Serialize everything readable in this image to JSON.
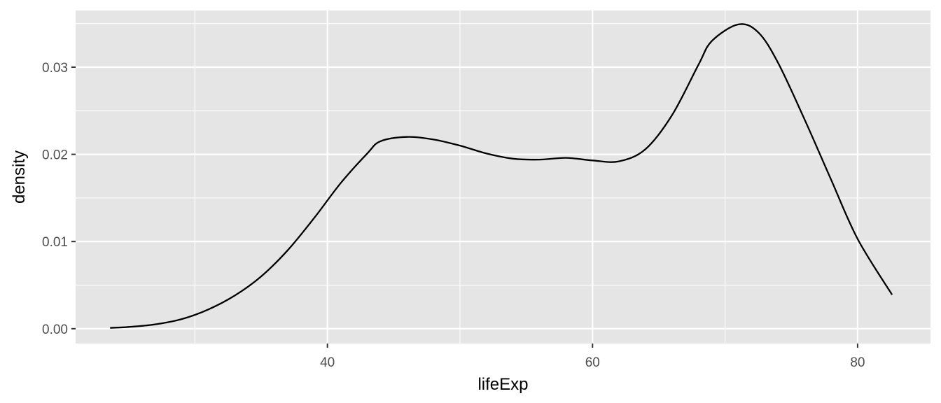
{
  "chart_data": {
    "type": "area",
    "title": "",
    "xlabel": "lifeExp",
    "ylabel": "density",
    "xlim": [
      21.0,
      85.5
    ],
    "ylim": [
      -0.0017,
      0.0365
    ],
    "x_ticks": [
      40,
      60,
      80
    ],
    "x_tick_labels": [
      "40",
      "60",
      "80"
    ],
    "y_ticks": [
      0.0,
      0.01,
      0.02,
      0.03
    ],
    "y_tick_labels": [
      "0.00",
      "0.01",
      "0.02",
      "0.03"
    ],
    "grid": true,
    "legend": "none",
    "colors": {
      "panel": "#e5e5e5",
      "grid": "#ffffff",
      "line": "#000000",
      "background": "#ffffff"
    },
    "series": [
      {
        "x": [
          23.6,
          25,
          27,
          29,
          31,
          33,
          35,
          37,
          39,
          41,
          43,
          44,
          46,
          48,
          50,
          52,
          54,
          56,
          58,
          60,
          62,
          64,
          66,
          68,
          69,
          71,
          72.5,
          74,
          76,
          78,
          80,
          82.6
        ],
        "y": [
          0.0001,
          0.0002,
          0.0005,
          0.0011,
          0.0022,
          0.0038,
          0.006,
          0.009,
          0.0127,
          0.0167,
          0.0201,
          0.0215,
          0.022,
          0.0217,
          0.021,
          0.0201,
          0.0195,
          0.0194,
          0.0196,
          0.0193,
          0.0192,
          0.0206,
          0.0245,
          0.0303,
          0.033,
          0.0349,
          0.034,
          0.0305,
          0.024,
          0.0171,
          0.0103,
          0.0039
        ]
      }
    ]
  }
}
